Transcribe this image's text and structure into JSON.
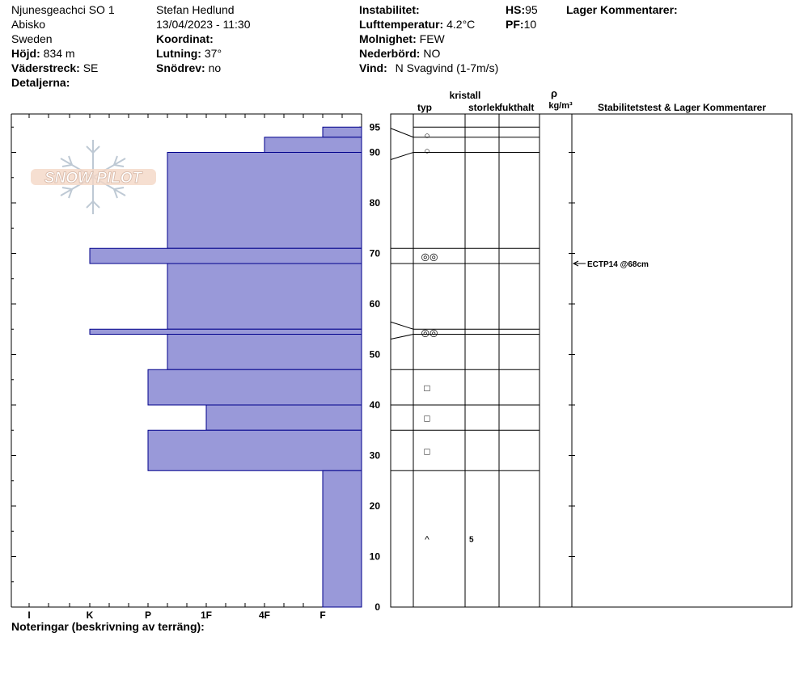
{
  "header": {
    "location": "Njunesgeachci SO 1",
    "region": "Abisko",
    "country": "Sweden",
    "elevation_label": "Höjd:",
    "elevation_value": "834 m",
    "aspect_label": "Väderstreck:",
    "aspect_value": "SE",
    "details_label": "Detaljerna:",
    "observer": "Stefan Hedlund",
    "datetime": "13/04/2023 - 11:30",
    "coord_label": "Koordinat:",
    "slope_label": "Lutning:",
    "slope_value": "37°",
    "drift_label": "Snödrev:",
    "drift_value": "no",
    "instability_label": "Instabilitet:",
    "airtemp_label": "Lufttemperatur:",
    "airtemp_value": "4.2°C",
    "sky_label": "Molnighet:",
    "sky_value": "FEW",
    "precip_label": "Nederbörd:",
    "precip_value": "NO",
    "wind_label": "Vind:",
    "wind_value": "N Svagvind (1-7m/s)",
    "hs_label": "HS:",
    "hs_value": "95",
    "pf_label": "PF:",
    "pf_value": "10",
    "layer_comments_label": "Lager Kommentarer:"
  },
  "logo_text": "SNOW PILOT",
  "columns": {
    "crystal": "kristall",
    "type": "typ",
    "size": "storlek",
    "moisture": "fukthalt",
    "rho": "ρ",
    "density_unit": "kg/m³",
    "stability": "Stabilitetstest & Lager Kommentarer"
  },
  "hardness_axis": [
    "I",
    "K",
    "P",
    "1F",
    "4F",
    "F"
  ],
  "depth_axis": [
    "95",
    "90",
    "80",
    "70",
    "60",
    "50",
    "40",
    "30",
    "20",
    "10",
    "0"
  ],
  "notes_label": "Noteringar (beskrivning av terräng):",
  "colors": {
    "layer_fill": "#9999d9",
    "layer_stroke": "#00008b"
  },
  "chart_data": {
    "type": "bar",
    "title": "",
    "hs_cm": 95,
    "ylim": [
      0,
      95
    ],
    "hardness_scale": [
      "I",
      "K",
      "P",
      "1F",
      "4F",
      "F"
    ],
    "layers": [
      {
        "top": 95,
        "bottom": 93,
        "hardness": "F"
      },
      {
        "top": 93,
        "bottom": 90,
        "hardness": "4F"
      },
      {
        "top": 90,
        "bottom": 71,
        "hardness": "P+"
      },
      {
        "top": 71,
        "bottom": 68,
        "hardness": "K"
      },
      {
        "top": 68,
        "bottom": 55,
        "hardness": "P+"
      },
      {
        "top": 55,
        "bottom": 54,
        "hardness": "K"
      },
      {
        "top": 54,
        "bottom": 47,
        "hardness": "P+"
      },
      {
        "top": 47,
        "bottom": 40,
        "hardness": "P"
      },
      {
        "top": 40,
        "bottom": 35,
        "hardness": "1F"
      },
      {
        "top": 35,
        "bottom": 27,
        "hardness": "P"
      },
      {
        "top": 27,
        "bottom": 0,
        "hardness": "F"
      }
    ],
    "grains": [
      {
        "depth": 93.5,
        "symbol": "○",
        "size": ""
      },
      {
        "depth": 90.5,
        "symbol": "○",
        "size": ""
      },
      {
        "depth": 69.5,
        "symbol": "◎◎",
        "size": ""
      },
      {
        "depth": 54.5,
        "symbol": "◎◎",
        "size": ""
      },
      {
        "depth": 43.5,
        "symbol": "□",
        "size": ""
      },
      {
        "depth": 37.5,
        "symbol": "□",
        "size": ""
      },
      {
        "depth": 31,
        "symbol": "□",
        "size": ""
      },
      {
        "depth": 13.5,
        "symbol": "^",
        "size": "5"
      }
    ],
    "stability_tests": [
      {
        "depth": 68,
        "text": "ECTP14 @68cm"
      }
    ]
  }
}
